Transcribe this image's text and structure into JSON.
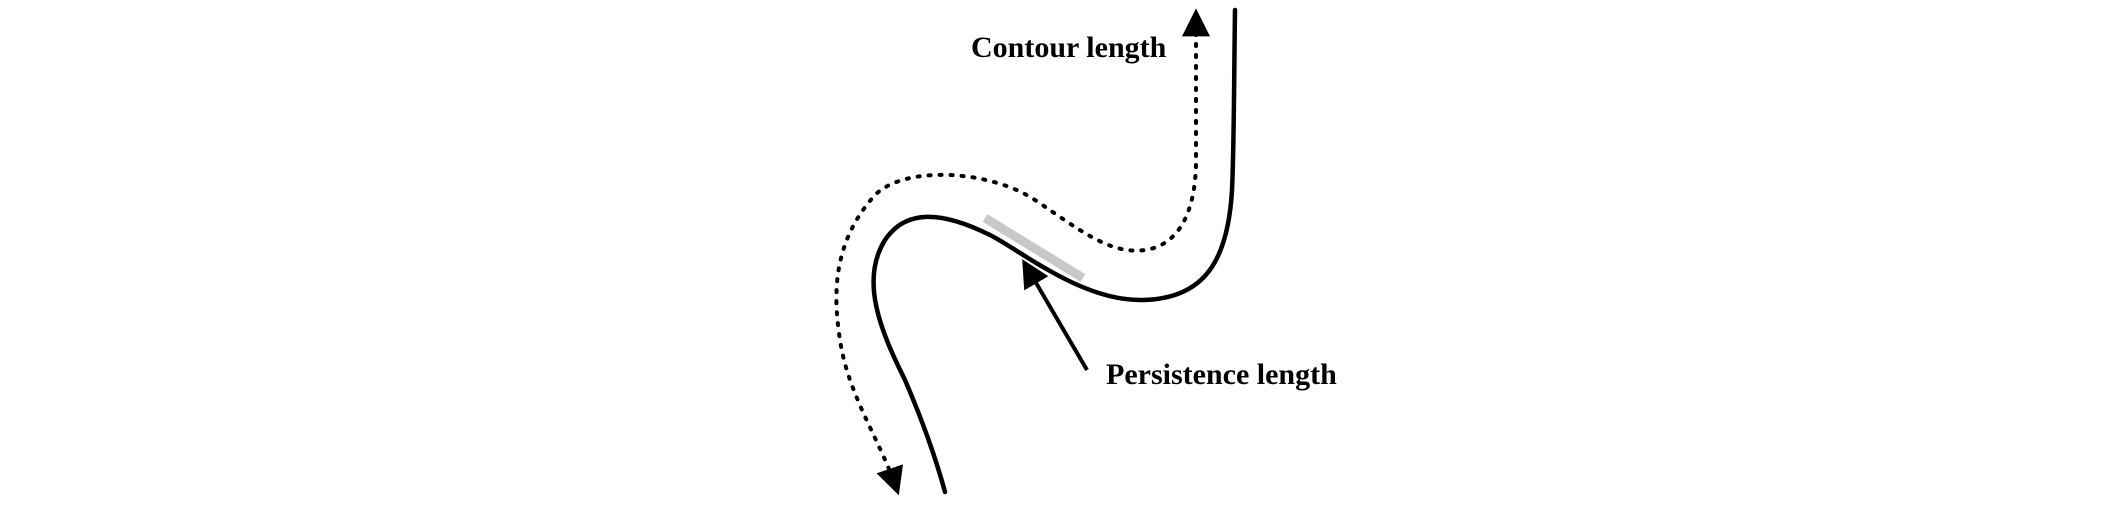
{
  "labels": {
    "contour": "Contour length",
    "persistence": "Persistence length"
  },
  "colors": {
    "ink": "#000000",
    "segment_highlight": "#c8c8c8",
    "background": "#ffffff"
  }
}
